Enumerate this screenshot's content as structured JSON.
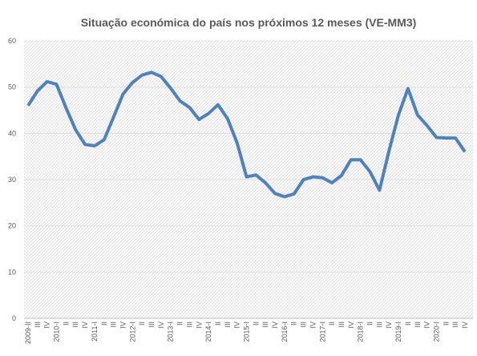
{
  "chart_data": {
    "type": "line",
    "title": "Situação económica do país nos próximos 12 meses (VE-MM3)",
    "categories": [
      "2009-II",
      "III",
      "IV",
      "2010-I",
      "II",
      "III",
      "IV",
      "2011-I",
      "II",
      "III",
      "IV",
      "2012-I",
      "II",
      "III",
      "IV",
      "2013-I",
      "II",
      "III",
      "IV",
      "2014-I",
      "II",
      "III",
      "IV",
      "2015-I",
      "II",
      "III",
      "IV",
      "2016-I",
      "II",
      "III",
      "IV",
      "2017-I",
      "II",
      "III",
      "IV",
      "2018-I",
      "II",
      "III",
      "IV",
      "2019-I",
      "II",
      "III",
      "IV",
      "2020-I",
      "II",
      "III",
      "IV"
    ],
    "series": [
      {
        "name": "VE-MM3",
        "color": "#4f81bd",
        "values": [
          46,
          49.2,
          51.2,
          50.6,
          45.5,
          40.8,
          37.6,
          37.3,
          38.6,
          43.5,
          48.5,
          51,
          52.6,
          53.2,
          52.3,
          49.8,
          47,
          45.6,
          43,
          44.3,
          46.2,
          43.2,
          38,
          30.6,
          31,
          29.3,
          27,
          26.3,
          26.9,
          30,
          30.6,
          30.4,
          29.3,
          30.9,
          34.3,
          34.3,
          31.7,
          27.7,
          36.2,
          44,
          49.7,
          44,
          41.7,
          39.1,
          39,
          39,
          36
        ]
      }
    ],
    "ylim": [
      0,
      60
    ],
    "yticks": [
      0,
      10,
      20,
      30,
      40,
      50,
      60
    ],
    "grid": true
  }
}
